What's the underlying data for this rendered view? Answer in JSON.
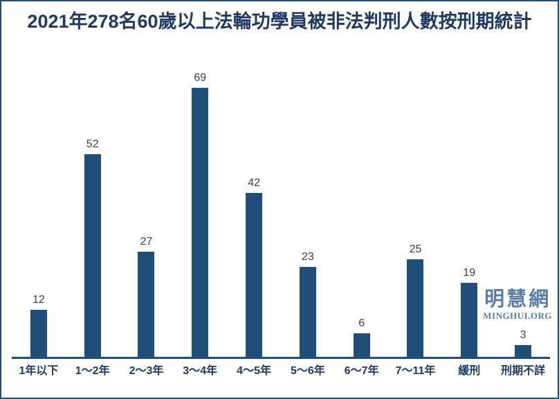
{
  "chart_data": {
    "type": "bar",
    "title": "2021年278名60歲以上法輪功學員被非法判刑人數按刑期統計",
    "categories": [
      "1年以下",
      "1～2年",
      "2～3年",
      "3～4年",
      "4～5年",
      "5～6年",
      "6～7年",
      "7～11年",
      "緩刑",
      "刑期不詳"
    ],
    "values": [
      12,
      52,
      27,
      69,
      42,
      23,
      6,
      25,
      19,
      3
    ],
    "total": 278,
    "xlabel": "",
    "ylabel": "",
    "ylim": [
      0,
      79
    ],
    "grid": false,
    "legend": false,
    "data_labels_shown": true,
    "bar_color": "#1F4E79",
    "axis_color": "#1F4E79",
    "title_color": "#1F3864",
    "category_label_color": "#1F3864",
    "value_label_color": "#404040"
  },
  "watermark": {
    "chinese": "明慧網",
    "latin": "MINGHUI.ORG",
    "color": "#5B7DAB"
  }
}
